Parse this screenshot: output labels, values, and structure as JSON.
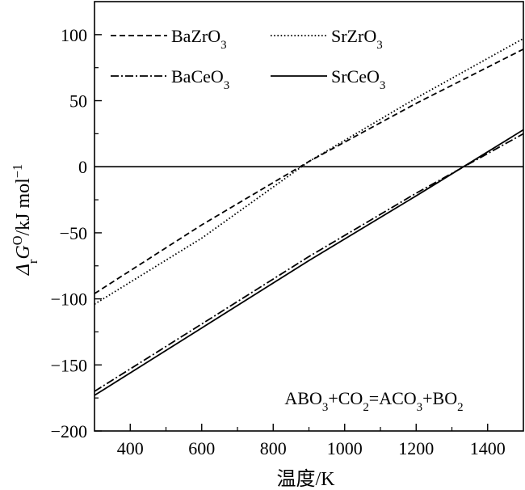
{
  "chart_data": {
    "type": "line",
    "xlabel": "温度/K",
    "ylabel": {
      "parts": [
        {
          "text": "Δ",
          "style": "italic"
        },
        {
          "text": "r",
          "style": "sub"
        },
        {
          "text": "G",
          "style": "italic"
        },
        {
          "text": "O",
          "style": "sup"
        },
        {
          "text": "/kJ mol",
          "style": "normal"
        },
        {
          "text": "−1",
          "style": "sup"
        }
      ]
    },
    "xlim": [
      300,
      1500
    ],
    "ylim": [
      -200,
      125
    ],
    "xticks": [
      {
        "value": 400,
        "label": "400"
      },
      {
        "value": 600,
        "label": "600"
      },
      {
        "value": 800,
        "label": "800"
      },
      {
        "value": 1000,
        "label": "1000"
      },
      {
        "value": 1200,
        "label": "1200"
      },
      {
        "value": 1400,
        "label": "1400"
      }
    ],
    "yticks": [
      {
        "value": -200,
        "label": "−200"
      },
      {
        "value": -150,
        "label": "−150"
      },
      {
        "value": -100,
        "label": "−100"
      },
      {
        "value": -50,
        "label": "−50"
      },
      {
        "value": 0,
        "label": "0"
      },
      {
        "value": 50,
        "label": "50"
      },
      {
        "value": 100,
        "label": "100"
      }
    ],
    "zero_line": 0,
    "grid": false,
    "legend_position": "top",
    "series": [
      {
        "name": "BaZrO3",
        "legend_label": {
          "base": "BaZrO",
          "sub": "3"
        },
        "dash": "dashed",
        "x": [
          300,
          600,
          900,
          1200,
          1500
        ],
        "y": [
          -96,
          -44,
          4,
          48,
          89
        ]
      },
      {
        "name": "SrZrO3",
        "legend_label": {
          "base": "SrZrO",
          "sub": "3"
        },
        "dash": "dotted",
        "x": [
          300,
          600,
          900,
          1200,
          1500
        ],
        "y": [
          -104,
          -54,
          4,
          52,
          97
        ]
      },
      {
        "name": "BaCeO3",
        "legend_label": {
          "base": "BaCeO",
          "sub": "3"
        },
        "dash": "dashdot",
        "x": [
          300,
          600,
          900,
          1200,
          1500
        ],
        "y": [
          -170,
          -119,
          -68,
          -20,
          25
        ]
      },
      {
        "name": "SrCeO3",
        "legend_label": {
          "base": "SrCeO",
          "sub": "3"
        },
        "dash": "solid",
        "x": [
          300,
          600,
          900,
          1200,
          1500
        ],
        "y": [
          -173,
          -122,
          -71,
          -22,
          28
        ]
      }
    ],
    "annotation": {
      "parts": [
        {
          "text": "ABO",
          "style": "normal"
        },
        {
          "text": "3",
          "style": "sub"
        },
        {
          "text": "+CO",
          "style": "normal"
        },
        {
          "text": "2",
          "style": "sub"
        },
        {
          "text": "=ACO",
          "style": "normal"
        },
        {
          "text": "3",
          "style": "sub"
        },
        {
          "text": "+BO",
          "style": "normal"
        },
        {
          "text": "2",
          "style": "sub"
        }
      ]
    }
  }
}
